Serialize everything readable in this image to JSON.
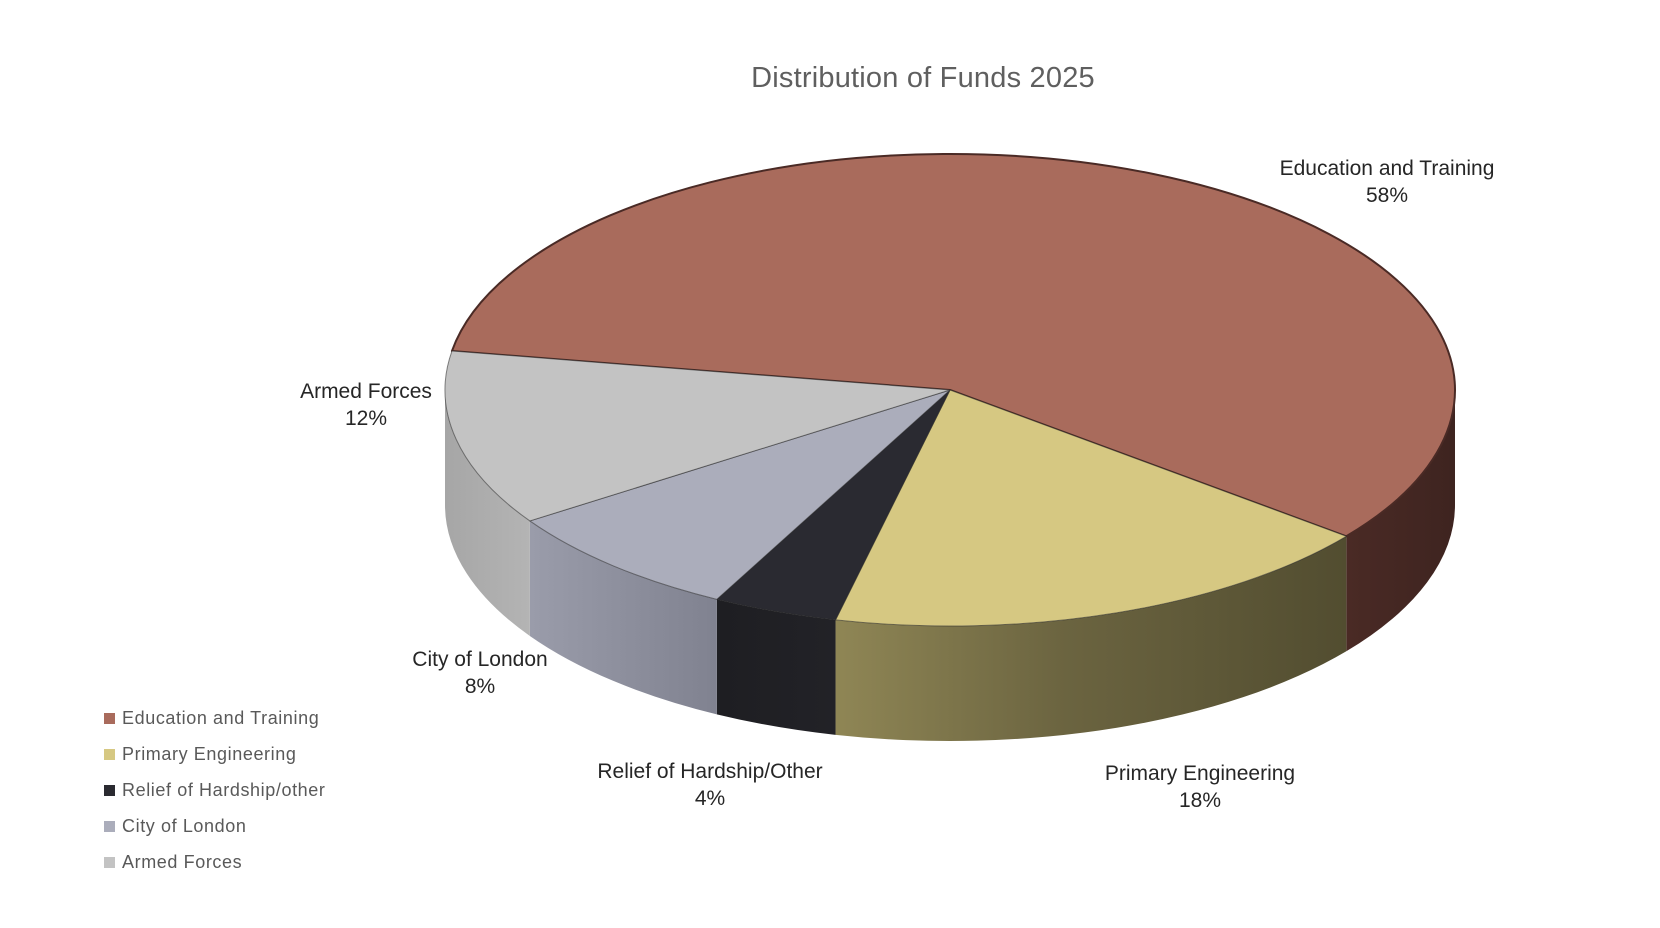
{
  "chart_data": {
    "type": "pie",
    "title": "Distribution of Funds 2025",
    "slices": [
      {
        "name": "Education and Training",
        "value": 58,
        "color": "#a96b5c"
      },
      {
        "name": "Primary Engineering",
        "value": 18,
        "color": "#d6c882"
      },
      {
        "name": "Relief of Hardship/other",
        "value": 4,
        "color": "#2a2a31"
      },
      {
        "name": "City of London",
        "value": 8,
        "color": "#abadbb"
      },
      {
        "name": "Armed Forces",
        "value": 12,
        "color": "#c3c3c3"
      }
    ],
    "data_labels": [
      {
        "name": "Education and Training",
        "percent": "58%"
      },
      {
        "name": "Primary Engineering",
        "percent": "18%"
      },
      {
        "name": "Relief of Hardship/Other",
        "percent": "4%"
      },
      {
        "name": "City of London",
        "percent": "8%"
      },
      {
        "name": "Armed Forces",
        "percent": "12%"
      }
    ],
    "legend": {
      "position": "bottom-left",
      "entries": [
        "Education and Training",
        "Primary Engineering",
        "Relief of Hardship/other",
        "City of London",
        "Armed Forces"
      ]
    },
    "style": "3d"
  }
}
